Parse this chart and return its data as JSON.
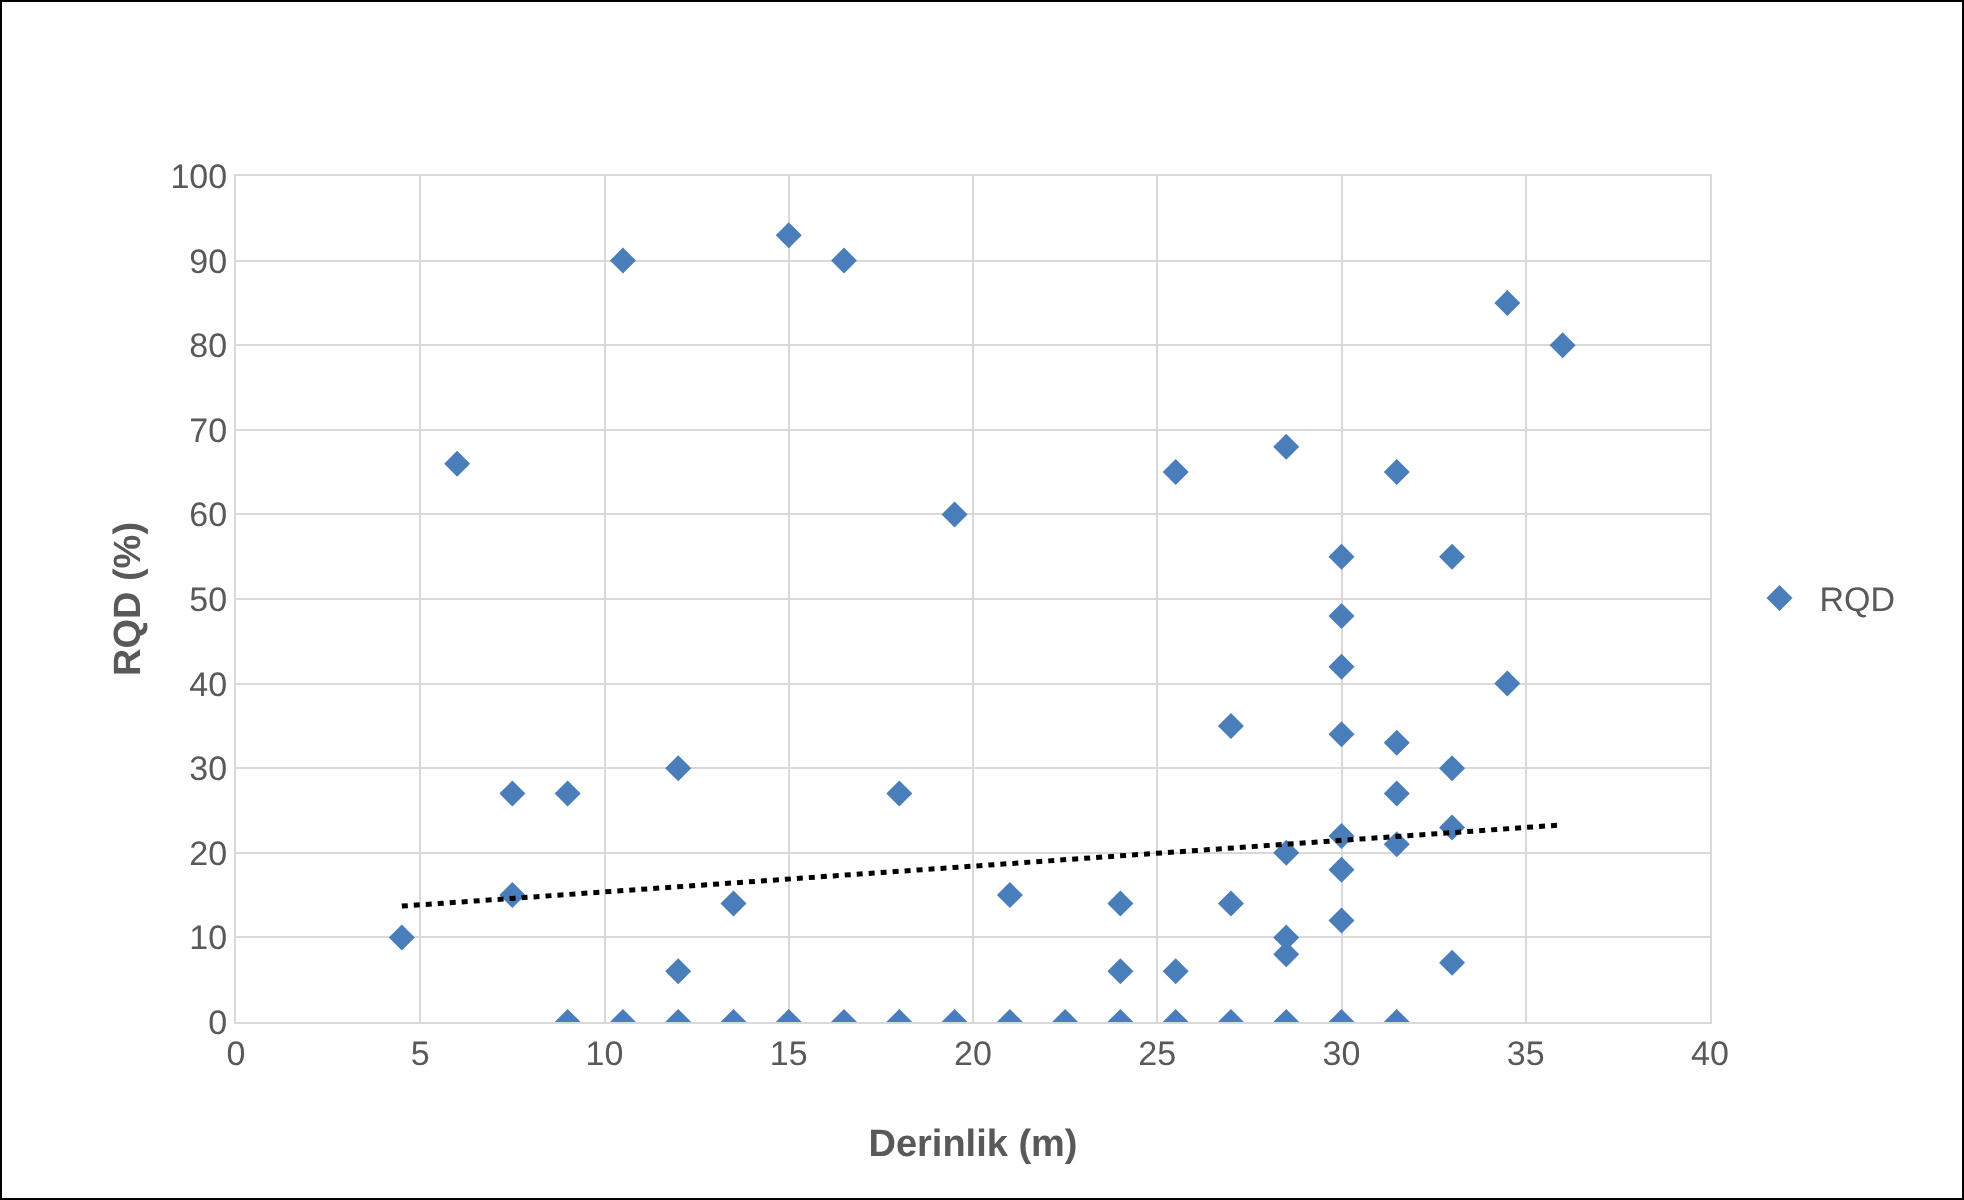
{
  "chart_data": {
    "type": "scatter",
    "xlabel": "Derinlik (m)",
    "ylabel": "RQD (%)",
    "xlim": [
      0,
      40
    ],
    "xticks": [
      0,
      5,
      10,
      15,
      20,
      25,
      30,
      35,
      40
    ],
    "ylim": [
      0,
      100
    ],
    "yticks": [
      0,
      10,
      20,
      30,
      40,
      50,
      60,
      70,
      80,
      90,
      100
    ],
    "grid": true,
    "legend": "right",
    "series": [
      {
        "name": "RQD",
        "marker": "diamond",
        "color": "#4a7ebb",
        "x": [
          4.5,
          6,
          7.5,
          7.5,
          9,
          9,
          10.5,
          10.5,
          12,
          12,
          12,
          13.5,
          13.5,
          15,
          15,
          16.5,
          16.5,
          18,
          18,
          19.5,
          19.5,
          21,
          21,
          22.5,
          24,
          24,
          24,
          25.5,
          25.5,
          25.5,
          27,
          27,
          27,
          28.5,
          28.5,
          28.5,
          28.5,
          28.5,
          30,
          30,
          30,
          30,
          30,
          30,
          30,
          30,
          31.5,
          31.5,
          31.5,
          31.5,
          31.5,
          33,
          33,
          33,
          33,
          34.5,
          34.5,
          36
        ],
        "values": [
          10,
          66,
          27,
          15,
          27,
          0,
          90,
          0,
          30,
          6,
          0,
          14,
          0,
          93,
          0,
          90,
          0,
          27,
          0,
          60,
          0,
          15,
          0,
          0,
          14,
          6,
          0,
          65,
          6,
          0,
          35,
          14,
          0,
          68,
          20,
          10,
          8,
          0,
          55,
          48,
          42,
          34,
          22,
          18,
          12,
          0,
          65,
          33,
          27,
          21,
          0,
          55,
          30,
          23,
          7,
          85,
          40,
          80
        ]
      },
      {
        "type": "line",
        "line_style": "dotted",
        "color": "#000000",
        "x": [
          4.5,
          36
        ],
        "values": [
          13.7,
          23.3
        ]
      }
    ]
  }
}
